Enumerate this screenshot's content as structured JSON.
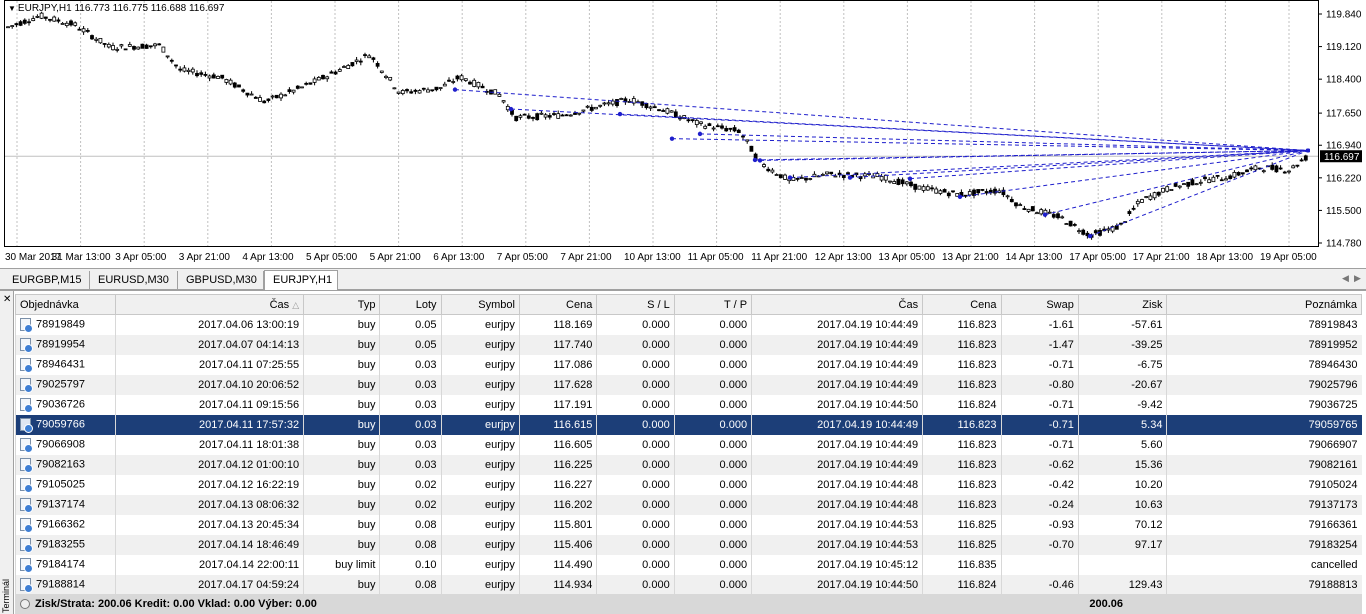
{
  "chart": {
    "symbol_label": "EURJPY,H1",
    "ohlc": "116.773 116.775 116.688 116.697",
    "price_levels": [
      "119.840",
      "119.120",
      "118.400",
      "117.650",
      "116.940",
      "116.220",
      "115.500",
      "114.780"
    ],
    "current_price": "116.697",
    "time_labels": [
      "30 Mar 2017",
      "31 Mar 13:00",
      "3 Apr 05:00",
      "3 Apr 21:00",
      "4 Apr 13:00",
      "5 Apr 05:00",
      "5 Apr 21:00",
      "6 Apr 13:00",
      "7 Apr 05:00",
      "7 Apr 21:00",
      "10 Apr 13:00",
      "11 Apr 05:00",
      "11 Apr 21:00",
      "12 Apr 13:00",
      "13 Apr 05:00",
      "13 Apr 21:00",
      "14 Apr 13:00",
      "17 Apr 05:00",
      "17 Apr 21:00",
      "18 Apr 13:00",
      "19 Apr 05:00"
    ],
    "colors": {
      "candle": "#000000",
      "trade_line": "#1f1fcc",
      "grid": "#c0c0c0",
      "price_line": "#c0c0c0"
    }
  },
  "tabs": [
    {
      "label": "EURGBP,M15",
      "active": false
    },
    {
      "label": "EURUSD,M30",
      "active": false
    },
    {
      "label": "GBPUSD,M30",
      "active": false
    },
    {
      "label": "EURJPY,H1",
      "active": true
    }
  ],
  "terminal": {
    "side_label": "Terminál",
    "columns": [
      "Objednávka",
      "Čas",
      "Typ",
      "Loty",
      "Symbol",
      "Cena",
      "S / L",
      "T / P",
      "Čas",
      "Cena",
      "Swap",
      "Zisk",
      "Poznámka"
    ],
    "rows": [
      [
        "78919849",
        "2017.04.06 13:00:19",
        "buy",
        "0.05",
        "eurjpy",
        "118.169",
        "0.000",
        "0.000",
        "2017.04.19 10:44:49",
        "116.823",
        "-1.61",
        "-57.61",
        "78919843"
      ],
      [
        "78919954",
        "2017.04.07 04:14:13",
        "buy",
        "0.05",
        "eurjpy",
        "117.740",
        "0.000",
        "0.000",
        "2017.04.19 10:44:49",
        "116.823",
        "-1.47",
        "-39.25",
        "78919952"
      ],
      [
        "78946431",
        "2017.04.11 07:25:55",
        "buy",
        "0.03",
        "eurjpy",
        "117.086",
        "0.000",
        "0.000",
        "2017.04.19 10:44:49",
        "116.823",
        "-0.71",
        "-6.75",
        "78946430"
      ],
      [
        "79025797",
        "2017.04.10 20:06:52",
        "buy",
        "0.03",
        "eurjpy",
        "117.628",
        "0.000",
        "0.000",
        "2017.04.19 10:44:49",
        "116.823",
        "-0.80",
        "-20.67",
        "79025796"
      ],
      [
        "79036726",
        "2017.04.11 09:15:56",
        "buy",
        "0.03",
        "eurjpy",
        "117.191",
        "0.000",
        "0.000",
        "2017.04.19 10:44:50",
        "116.824",
        "-0.71",
        "-9.42",
        "79036725"
      ],
      [
        "79059766",
        "2017.04.11 17:57:32",
        "buy",
        "0.03",
        "eurjpy",
        "116.615",
        "0.000",
        "0.000",
        "2017.04.19 10:44:49",
        "116.823",
        "-0.71",
        "5.34",
        "79059765"
      ],
      [
        "79066908",
        "2017.04.11 18:01:38",
        "buy",
        "0.03",
        "eurjpy",
        "116.605",
        "0.000",
        "0.000",
        "2017.04.19 10:44:49",
        "116.823",
        "-0.71",
        "5.60",
        "79066907"
      ],
      [
        "79082163",
        "2017.04.12 01:00:10",
        "buy",
        "0.03",
        "eurjpy",
        "116.225",
        "0.000",
        "0.000",
        "2017.04.19 10:44:49",
        "116.823",
        "-0.62",
        "15.36",
        "79082161"
      ],
      [
        "79105025",
        "2017.04.12 16:22:19",
        "buy",
        "0.02",
        "eurjpy",
        "116.227",
        "0.000",
        "0.000",
        "2017.04.19 10:44:48",
        "116.823",
        "-0.42",
        "10.20",
        "79105024"
      ],
      [
        "79137174",
        "2017.04.13 08:06:32",
        "buy",
        "0.02",
        "eurjpy",
        "116.202",
        "0.000",
        "0.000",
        "2017.04.19 10:44:48",
        "116.823",
        "-0.24",
        "10.63",
        "79137173"
      ],
      [
        "79166362",
        "2017.04.13 20:45:34",
        "buy",
        "0.08",
        "eurjpy",
        "115.801",
        "0.000",
        "0.000",
        "2017.04.19 10:44:53",
        "116.825",
        "-0.93",
        "70.12",
        "79166361"
      ],
      [
        "79183255",
        "2017.04.14 18:46:49",
        "buy",
        "0.08",
        "eurjpy",
        "115.406",
        "0.000",
        "0.000",
        "2017.04.19 10:44:53",
        "116.825",
        "-0.70",
        "97.17",
        "79183254"
      ],
      [
        "79184174",
        "2017.04.14 22:00:11",
        "buy limit",
        "0.10",
        "eurjpy",
        "114.490",
        "0.000",
        "0.000",
        "2017.04.19 10:45:12",
        "116.835",
        "",
        "",
        "cancelled"
      ],
      [
        "79188814",
        "2017.04.17 04:59:24",
        "buy",
        "0.08",
        "eurjpy",
        "114.934",
        "0.000",
        "0.000",
        "2017.04.19 10:44:50",
        "116.824",
        "-0.46",
        "129.43",
        "79188813"
      ]
    ],
    "selected_row": 5,
    "summary_text": "Zisk/Strata: 200.06  Kredit: 0.00  Vklad: 0.00  Výber: 0.00",
    "summary_profit": "200.06"
  }
}
